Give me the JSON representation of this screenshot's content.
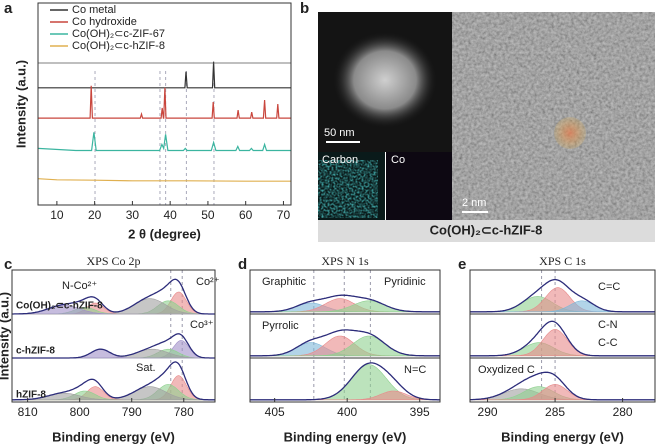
{
  "figure": {
    "panel_labels": [
      "a",
      "b",
      "c",
      "d",
      "e"
    ]
  },
  "chart_data": [
    {
      "type": "line",
      "xlabel": "2 θ (degree)",
      "ylabel": "Intensity (a.u.)",
      "xlim": [
        5,
        72
      ],
      "xticks": [
        10,
        20,
        30,
        40,
        50,
        60,
        70
      ],
      "ylim": [
        0,
        100
      ],
      "reference_lines": [
        20.1,
        37.3,
        38.8,
        44.3,
        51.6
      ],
      "series": [
        {
          "name": "Co metal",
          "color": "#333333",
          "x": [
            5,
            43.9,
            44.2,
            44.5,
            51.2,
            51.5,
            51.8,
            72
          ],
          "values": [
            58,
            58,
            66,
            58,
            58,
            71,
            58,
            58
          ]
        },
        {
          "name": "Co hydroxide",
          "color": "#c9463d",
          "x": [
            5,
            18.8,
            19.1,
            19.4,
            32.1,
            32.4,
            32.7,
            37.6,
            37.9,
            38.2,
            38.3,
            38.6,
            38.9,
            51.1,
            51.4,
            51.7,
            57.7,
            58,
            58.3,
            61.3,
            61.6,
            61.9,
            64.7,
            65,
            65.3,
            68.2,
            68.5,
            68.8,
            72
          ],
          "values": [
            43,
            43,
            59,
            43,
            43,
            45,
            43,
            43,
            48,
            43,
            43,
            58,
            43,
            43,
            51,
            43,
            43,
            47,
            43,
            43,
            46,
            43,
            43,
            52,
            43,
            43,
            50,
            43,
            43
          ]
        },
        {
          "name": "Co(OH)₂⊂c-ZIF-67",
          "color": "#3bb5a0",
          "x": [
            5,
            15,
            19.2,
            19.8,
            20.4,
            25,
            37.2,
            37.8,
            38.3,
            38.8,
            39.4,
            43.5,
            44,
            44.5,
            50.9,
            51.5,
            52.1,
            57.4,
            57.9,
            58.4,
            61,
            61.5,
            62,
            64.5,
            65,
            65.5,
            72
          ],
          "values": [
            28,
            27,
            27,
            36,
            27,
            27,
            27,
            30,
            28,
            35,
            27,
            27,
            28,
            27,
            27,
            31,
            27,
            27,
            29,
            27,
            27,
            28,
            27,
            27,
            30,
            27,
            27
          ]
        },
        {
          "name": "Co(OH)₂⊂c-hZIF-8",
          "color": "#e0b050",
          "x": [
            5,
            10,
            20,
            30,
            45,
            60,
            72
          ],
          "values": [
            13,
            12.5,
            12.3,
            12,
            12,
            11.8,
            11.8
          ]
        }
      ]
    },
    {
      "type": "area",
      "title": "XPS Co 2p",
      "xlabel": "Binding energy (eV)",
      "ylabel": "Intensity (a.u.)",
      "xlim": [
        813,
        774
      ],
      "xticks": [
        810,
        800,
        790,
        780
      ],
      "ylim": [
        0,
        3
      ],
      "reference_lines": [
        782.5,
        780.3
      ],
      "annotations": [
        "N-Co²⁺",
        "Co²⁺",
        "Co³⁺",
        "Sat."
      ],
      "spectra": [
        {
          "name": "Co(OH)₂⊂c-hZIF-8",
          "offset": 2,
          "components": [
            {
              "center": 781,
              "height": 0.5,
              "width": 1.5,
              "color": "#e88a8a"
            },
            {
              "center": 783,
              "height": 0.3,
              "width": 2,
              "color": "#8fd08f"
            },
            {
              "center": 786.5,
              "height": 0.35,
              "width": 3,
              "color": "#a0a0a0"
            },
            {
              "center": 797,
              "height": 0.25,
              "width": 1.6,
              "color": "#e88a8a"
            },
            {
              "center": 799,
              "height": 0.15,
              "width": 2,
              "color": "#8fd08f"
            },
            {
              "center": 803,
              "height": 0.2,
              "width": 3,
              "color": "#a090c8"
            }
          ]
        },
        {
          "name": "c-hZIF-8",
          "offset": 1,
          "components": [
            {
              "center": 780.5,
              "height": 0.4,
              "width": 1.5,
              "color": "#a090c8"
            },
            {
              "center": 783,
              "height": 0.2,
              "width": 2,
              "color": "#8fd08f"
            },
            {
              "center": 786,
              "height": 0.2,
              "width": 3,
              "color": "#a0a0a0"
            },
            {
              "center": 796,
              "height": 0.2,
              "width": 1.8,
              "color": "#a090c8"
            }
          ]
        },
        {
          "name": "hZIF-8",
          "offset": 0.05,
          "components": [
            {
              "center": 781,
              "height": 0.55,
              "width": 1.5,
              "color": "#e88a8a"
            },
            {
              "center": 783,
              "height": 0.35,
              "width": 2,
              "color": "#8fd08f"
            },
            {
              "center": 786.5,
              "height": 0.3,
              "width": 3,
              "color": "#a0a0a0"
            },
            {
              "center": 797,
              "height": 0.3,
              "width": 1.6,
              "color": "#e88a8a"
            },
            {
              "center": 799,
              "height": 0.2,
              "width": 2,
              "color": "#8fd08f"
            },
            {
              "center": 803,
              "height": 0.15,
              "width": 3,
              "color": "#a0a0a0"
            }
          ]
        }
      ]
    },
    {
      "type": "area",
      "title": "XPS N 1s",
      "xlabel": "Binding energy (eV)",
      "xlim": [
        406.7,
        393.6
      ],
      "xticks": [
        405,
        400,
        395
      ],
      "ylim": [
        0,
        3
      ],
      "reference_lines": [
        402.3,
        400.2,
        398.4
      ],
      "annotations": [
        "Graphitic",
        "Pyridinic",
        "Pyrrolic",
        "N=C"
      ],
      "spectra": [
        {
          "offset": 2.05,
          "components": [
            {
              "center": 402.5,
              "height": 0.2,
              "width": 1,
              "color": "#7fb8d8"
            },
            {
              "center": 400.5,
              "height": 0.3,
              "width": 1,
              "color": "#e88a8a"
            },
            {
              "center": 398.5,
              "height": 0.25,
              "width": 1.1,
              "color": "#8fd08f"
            }
          ]
        },
        {
          "offset": 1.05,
          "components": [
            {
              "center": 402.5,
              "height": 0.3,
              "width": 1,
              "color": "#7fb8d8"
            },
            {
              "center": 400.5,
              "height": 0.45,
              "width": 1,
              "color": "#e88a8a"
            },
            {
              "center": 398.5,
              "height": 0.45,
              "width": 1.1,
              "color": "#8fd08f"
            }
          ]
        },
        {
          "offset": 0.05,
          "components": [
            {
              "center": 398.5,
              "height": 0.8,
              "width": 1.2,
              "color": "#8fd08f"
            },
            {
              "center": 396.8,
              "height": 0.2,
              "width": 0.9,
              "color": "#e88a8a"
            }
          ]
        }
      ]
    },
    {
      "type": "area",
      "title": "XPS C 1s",
      "xlabel": "Binding energy (eV)",
      "xlim": [
        291.3,
        277.6
      ],
      "xticks": [
        290,
        285,
        280
      ],
      "ylim": [
        0,
        3
      ],
      "reference_lines": [
        286,
        285
      ],
      "annotations": [
        "C=C",
        "C-N",
        "C-C",
        "Oxydized C"
      ],
      "spectra": [
        {
          "offset": 2.05,
          "components": [
            {
              "center": 286.3,
              "height": 0.35,
              "width": 1.1,
              "color": "#8fd08f"
            },
            {
              "center": 284.8,
              "height": 0.55,
              "width": 0.9,
              "color": "#e88a8a"
            },
            {
              "center": 283,
              "height": 0.25,
              "width": 0.9,
              "color": "#7fb8d8"
            }
          ]
        },
        {
          "offset": 1.05,
          "components": [
            {
              "center": 286.2,
              "height": 0.3,
              "width": 1.1,
              "color": "#8fd08f"
            },
            {
              "center": 285,
              "height": 0.6,
              "width": 0.9,
              "color": "#e88a8a"
            }
          ]
        },
        {
          "offset": 0.05,
          "components": [
            {
              "center": 287.5,
              "height": 0.25,
              "width": 1.3,
              "color": "#a0a0a0"
            },
            {
              "center": 286.2,
              "height": 0.3,
              "width": 1.1,
              "color": "#8fd08f"
            },
            {
              "center": 285,
              "height": 0.35,
              "width": 0.9,
              "color": "#e88a8a"
            }
          ]
        }
      ]
    }
  ],
  "image_panel": {
    "scale_bar_left": "50 nm",
    "map_labels": [
      "Carbon",
      "Co"
    ],
    "scale_bar_right": "2 nm",
    "caption": "Co(OH)₂⊂c-hZIF-8"
  }
}
